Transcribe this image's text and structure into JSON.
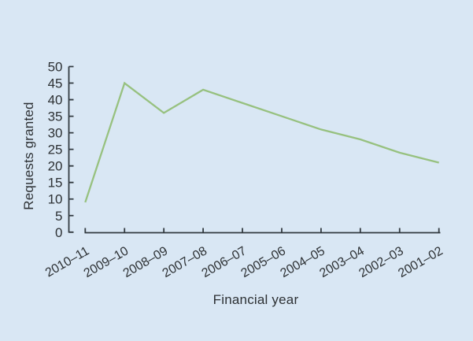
{
  "chart_data": {
    "type": "line",
    "categories": [
      "2010–11",
      "2009–10",
      "2008–09",
      "2007–08",
      "2006–07",
      "2005–06",
      "2004–05",
      "2003–04",
      "2002–03",
      "2001–02"
    ],
    "values": [
      9,
      45,
      36,
      43,
      39,
      35,
      31,
      28,
      24,
      21
    ],
    "title": "",
    "xlabel": "Financial year",
    "ylabel": "Requests granted",
    "ylim": [
      0,
      50
    ],
    "ytick_step": 5,
    "grid": false,
    "legend": "none",
    "colors": {
      "line": "#97c17f",
      "background": "#d9e7f4",
      "axis": "#333b41",
      "text": "#2d3134"
    }
  }
}
